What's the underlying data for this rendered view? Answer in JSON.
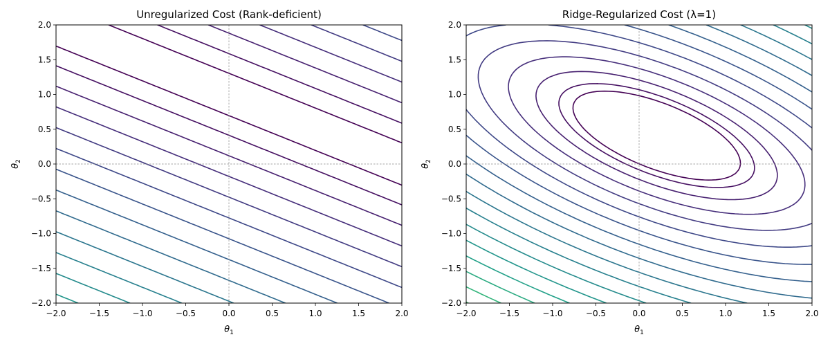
{
  "chart_data": [
    {
      "type": "contour",
      "title": "Unregularized Cost (Rank-deficient)",
      "xlabel": "θ",
      "xlabel_sub": "1",
      "ylabel": "θ",
      "ylabel_sub": "2",
      "xlim": [
        -2.0,
        2.0
      ],
      "ylim": [
        -2.0,
        2.0
      ],
      "xticks": [
        "−2.0",
        "−1.5",
        "−1.0",
        "−0.5",
        "0.0",
        "0.5",
        "1.0",
        "1.5",
        "2.0"
      ],
      "yticks": [
        "−2.0",
        "−1.5",
        "−1.0",
        "−0.5",
        "0.0",
        "0.5",
        "1.0",
        "1.5",
        "2.0"
      ],
      "reference_lines": {
        "x": 0,
        "y": 0,
        "style": "dashed",
        "color": "#888888"
      },
      "colormap": "viridis",
      "contour_lines": [
        {
          "level": 1,
          "points": [
            [
              -1.68,
              2.0
            ],
            [
              2.0,
              0.17
            ]
          ]
        },
        {
          "level": 1,
          "points": [
            [
              -2.0,
              0.84
            ],
            [
              2.0,
              -1.17
            ]
          ]
        },
        {
          "level": 2,
          "points": [
            [
              -2.0,
              0.56
            ],
            [
              2.0,
              -1.44
            ]
          ]
        },
        {
          "level": 2,
          "points": [
            [
              -1.15,
              2.0
            ],
            [
              2.0,
              0.45
            ]
          ]
        }
      ],
      "notes": "Parallel straight contours; no unique minimum"
    },
    {
      "type": "contour",
      "title": "Ridge-Regularized Cost (λ=1)",
      "xlabel": "θ",
      "xlabel_sub": "1",
      "ylabel": "θ",
      "ylabel_sub": "2",
      "xlim": [
        -2.0,
        2.0
      ],
      "ylim": [
        -2.0,
        2.0
      ],
      "xticks": [
        "−2.0",
        "−1.5",
        "−1.0",
        "−0.5",
        "0.0",
        "0.5",
        "1.0",
        "1.5",
        "2.0"
      ],
      "yticks": [
        "−2.0",
        "−1.5",
        "−1.0",
        "−0.5",
        "0.0",
        "0.5",
        "1.0",
        "1.5",
        "2.0"
      ],
      "reference_lines": {
        "x": 0,
        "y": 0,
        "style": "dashed",
        "color": "#888888"
      },
      "colormap": "viridis",
      "contour_lines": [
        {
          "level": 1,
          "closed": true,
          "points": [
            [
              -1.8,
              1.3
            ],
            [
              0.0,
              1.1
            ],
            [
              1.8,
              -0.72
            ],
            [
              2.0,
              -0.2
            ]
          ]
        },
        {
          "level": 2,
          "points": [
            [
              -2.0,
              1.95
            ],
            [
              2.0,
              0.23
            ]
          ]
        },
        {
          "level": 2,
          "points": [
            [
              -2.0,
              0.81
            ],
            [
              2.0,
              -1.15
            ]
          ]
        }
      ],
      "notes": "Elliptical contours with unique minimum"
    }
  ]
}
